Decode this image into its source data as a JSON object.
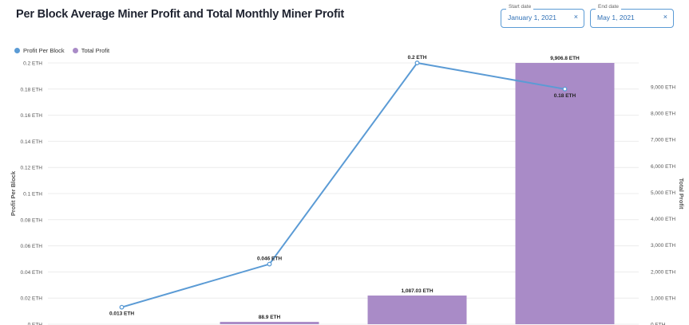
{
  "title": "Per Block Average Miner Profit and Total Monthly Miner Profit",
  "filters": {
    "start": {
      "label": "Start date",
      "value": "January 1, 2021",
      "clear_icon": "×"
    },
    "end": {
      "label": "End date",
      "value": "May 1, 2021",
      "clear_icon": "×"
    }
  },
  "colors": {
    "line": "#5b9bd5",
    "bar": "#a98bc7",
    "field_border": "#5b9bd5"
  },
  "chart_data": {
    "type": "bar+line",
    "categories": [
      "",
      "",
      "",
      ""
    ],
    "legend": [
      "Profit Per Block",
      "Total Profit"
    ],
    "legend_position": "top-left",
    "series": [
      {
        "name": "Profit Per Block",
        "type": "line",
        "axis": "left",
        "values": [
          0.013,
          0.046,
          0.2,
          0.18
        ],
        "labels": [
          "0.013 ETH",
          "0.046 ETH",
          "0.2 ETH",
          "0.18 ETH"
        ]
      },
      {
        "name": "Total Profit",
        "type": "bar",
        "axis": "right",
        "values": [
          0,
          88.9,
          1087.03,
          9906.8
        ],
        "labels": [
          "",
          "88.9 ETH",
          "1,087.03 ETH",
          "9,906.8 ETH"
        ]
      }
    ],
    "y_left": {
      "label": "Profit Per Block",
      "range": [
        0,
        0.2
      ],
      "ticks": [
        {
          "v": 0,
          "t": "0 ETH"
        },
        {
          "v": 0.02,
          "t": "0.02 ETH"
        },
        {
          "v": 0.04,
          "t": "0.04 ETH"
        },
        {
          "v": 0.06,
          "t": "0.06 ETH"
        },
        {
          "v": 0.08,
          "t": "0.08 ETH"
        },
        {
          "v": 0.1,
          "t": "0.1 ETH"
        },
        {
          "v": 0.12,
          "t": "0.12 ETH"
        },
        {
          "v": 0.14,
          "t": "0.14 ETH"
        },
        {
          "v": 0.16,
          "t": "0.16 ETH"
        },
        {
          "v": 0.18,
          "t": "0.18 ETH"
        },
        {
          "v": 0.2,
          "t": "0.2 ETH"
        }
      ]
    },
    "y_right": {
      "label": "Total Profit",
      "range": [
        0,
        9906.8
      ],
      "ticks": [
        {
          "v": 0,
          "t": "0 ETH"
        },
        {
          "v": 1000,
          "t": "1,000 ETH"
        },
        {
          "v": 2000,
          "t": "2,000 ETH"
        },
        {
          "v": 3000,
          "t": "3,000 ETH"
        },
        {
          "v": 4000,
          "t": "4,000 ETH"
        },
        {
          "v": 5000,
          "t": "5,000 ETH"
        },
        {
          "v": 6000,
          "t": "6,000 ETH"
        },
        {
          "v": 7000,
          "t": "7,000 ETH"
        },
        {
          "v": 8000,
          "t": "8,000 ETH"
        },
        {
          "v": 9000,
          "t": "9,000 ETH"
        }
      ]
    },
    "grid": true
  }
}
